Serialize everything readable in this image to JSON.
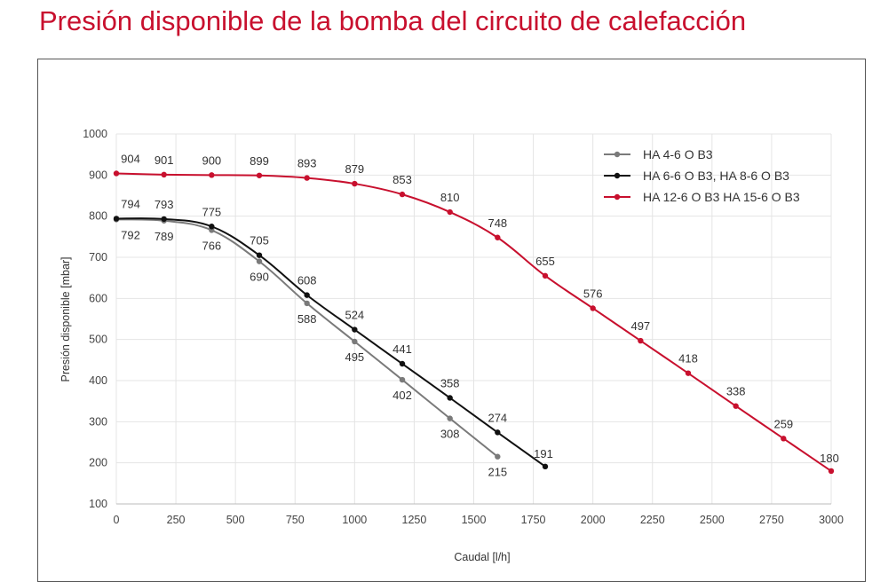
{
  "page": {
    "title": "Presión disponible de la bomba del circuito de calefacción"
  },
  "chart_data": {
    "type": "line",
    "title": "Presión disponible de la bomba del circuito de calefacción",
    "xlabel": "Caudal [l/h]",
    "ylabel": "Presión disponible [mbar]",
    "xlim": [
      0,
      3000
    ],
    "ylim": [
      100,
      1000
    ],
    "xticks": [
      "0",
      "250",
      "500",
      "750",
      "1000",
      "1250",
      "1500",
      "1750",
      "2000",
      "2250",
      "2500",
      "2750",
      "3000"
    ],
    "yticks": [
      "100",
      "200",
      "300",
      "400",
      "500",
      "600",
      "700",
      "800",
      "900",
      "1000"
    ],
    "grid": true,
    "legend_position": "top-right",
    "series": [
      {
        "name": "HA 4-6 O B3",
        "color": "#7a7a7a",
        "x": [
          0,
          200,
          400,
          600,
          800,
          1000,
          1200,
          1400,
          1600
        ],
        "y": [
          792,
          789,
          766,
          690,
          588,
          495,
          402,
          308,
          215
        ],
        "labels": [
          "792",
          "789",
          "766",
          "690",
          "588",
          "495",
          "402",
          "308",
          "215"
        ]
      },
      {
        "name": "HA 6-6 O B3, HA 8-6 O B3",
        "color": "#111111",
        "x": [
          0,
          200,
          400,
          600,
          800,
          1000,
          1200,
          1400,
          1600,
          1800
        ],
        "y": [
          794,
          793,
          775,
          705,
          608,
          524,
          441,
          358,
          274,
          191
        ],
        "labels": [
          "794",
          "793",
          "775",
          "705",
          "608",
          "524",
          "441",
          "358",
          "274",
          "191"
        ]
      },
      {
        "name": "HA 12-6 O B3 HA 15-6 O B3",
        "color": "#c8102e",
        "x": [
          0,
          200,
          400,
          600,
          800,
          1000,
          1200,
          1400,
          1600,
          1800,
          2000,
          2200,
          2400,
          2600,
          2800,
          3000
        ],
        "y": [
          904,
          901,
          900,
          899,
          893,
          879,
          853,
          810,
          748,
          655,
          576,
          497,
          418,
          338,
          259,
          180
        ],
        "labels": [
          "904",
          "901",
          "900",
          "899",
          "893",
          "879",
          "853",
          "810",
          "748",
          "655",
          "576",
          "497",
          "418",
          "338",
          "259",
          "180"
        ]
      }
    ]
  }
}
